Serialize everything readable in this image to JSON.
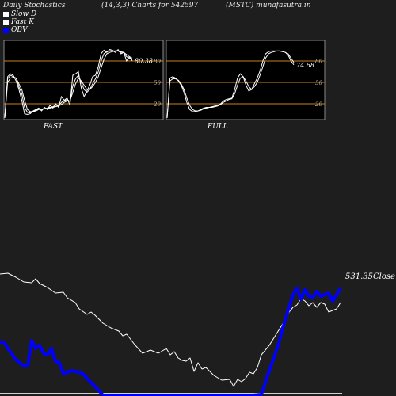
{
  "header": {
    "left": "Daily Stochastics",
    "center": "(14,3,3) Charts for 542597",
    "right": "(MSTC) munafasutra.in"
  },
  "legend": [
    {
      "label": "Slow  D",
      "color": "#ffffff"
    },
    {
      "label": "Fast K",
      "color": "#ffffff"
    },
    {
      "label": "OBV",
      "color": "#0000ff"
    }
  ],
  "colors": {
    "background": "#1e1e1e",
    "panel_background": "#000000",
    "panel_border": "#888888",
    "level_line": "#c87f1e",
    "line": "#ffffff",
    "obv": "#0000ff"
  },
  "chart_data": [
    {
      "type": "line",
      "panel": "FAST",
      "label": "FAST",
      "ylim": [
        0,
        100
      ],
      "ticks": [
        80,
        50,
        20
      ],
      "levels": [
        80,
        50,
        20
      ],
      "last_value_label": "80.38",
      "series": [
        {
          "values": [
            0,
            58,
            62,
            60,
            52,
            40,
            25,
            6,
            5,
            6,
            10,
            12,
            14,
            10,
            15,
            12,
            18,
            14,
            20,
            15,
            30,
            25,
            28,
            18,
            60,
            62,
            65,
            42,
            30,
            38,
            46,
            58,
            60,
            72,
            90,
            95,
            92,
            96,
            95,
            92,
            96,
            90,
            92,
            80,
            86,
            80.38
          ]
        },
        {
          "values": [
            0,
            55,
            60,
            58,
            56,
            44,
            34,
            15,
            8,
            7,
            9,
            11,
            13,
            12,
            13,
            14,
            15,
            16,
            18,
            17,
            22,
            24,
            26,
            23,
            45,
            55,
            60,
            50,
            40,
            36,
            40,
            48,
            55,
            65,
            80,
            90,
            93,
            94,
            94,
            94,
            94,
            92,
            92,
            86,
            84,
            82
          ]
        },
        {
          "values": [
            0,
            50,
            56,
            57,
            56,
            48,
            40,
            25,
            12,
            9,
            9,
            10,
            12,
            12,
            13,
            13,
            14,
            15,
            16,
            17,
            19,
            22,
            24,
            24,
            36,
            48,
            56,
            52,
            46,
            40,
            40,
            44,
            50,
            58,
            70,
            82,
            90,
            92,
            93,
            94,
            94,
            93,
            92,
            89,
            86,
            84
          ]
        }
      ]
    },
    {
      "type": "line",
      "panel": "FULL",
      "label": "FULL",
      "ylim": [
        0,
        100
      ],
      "ticks": [
        80,
        50,
        20
      ],
      "levels": [
        80,
        50,
        20
      ],
      "last_value_label": "74.68",
      "series": [
        {
          "values": [
            0,
            56,
            58,
            56,
            52,
            46,
            36,
            22,
            12,
            9,
            9,
            10,
            12,
            14,
            15,
            15,
            16,
            17,
            18,
            20,
            24,
            26,
            27,
            28,
            40,
            56,
            62,
            58,
            46,
            38,
            40,
            48,
            56,
            66,
            80,
            90,
            93,
            94,
            94,
            94,
            94,
            93,
            92,
            88,
            80,
            74.68
          ]
        },
        {
          "values": [
            0,
            52,
            55,
            55,
            53,
            48,
            40,
            28,
            18,
            12,
            10,
            10,
            11,
            13,
            14,
            15,
            15,
            16,
            17,
            19,
            22,
            24,
            26,
            27,
            34,
            46,
            56,
            58,
            52,
            44,
            40,
            44,
            50,
            60,
            72,
            84,
            90,
            92,
            93,
            94,
            94,
            93,
            92,
            90,
            84,
            78
          ]
        }
      ]
    },
    {
      "type": "line",
      "panel": "OBV",
      "last_value_label": "531.35Close",
      "series": [
        {
          "name": "Close",
          "color": "#ffffff",
          "values": [
            [
              0,
              54
            ],
            [
              10,
              55
            ],
            [
              20,
              50
            ],
            [
              30,
              44
            ],
            [
              40,
              43
            ],
            [
              45,
              48
            ],
            [
              50,
              42
            ],
            [
              60,
              37
            ],
            [
              70,
              30
            ],
            [
              80,
              31
            ],
            [
              85,
              24
            ],
            [
              95,
              18
            ],
            [
              100,
              10
            ],
            [
              110,
              3
            ],
            [
              115,
              6
            ],
            [
              120,
              2
            ],
            [
              130,
              -8
            ],
            [
              140,
              -14
            ],
            [
              150,
              -18
            ],
            [
              155,
              -24
            ],
            [
              160,
              -22
            ],
            [
              170,
              -35
            ],
            [
              180,
              -46
            ],
            [
              190,
              -42
            ],
            [
              200,
              -46
            ],
            [
              210,
              -40
            ],
            [
              215,
              -48
            ],
            [
              220,
              -44
            ],
            [
              225,
              -52
            ],
            [
              230,
              -55
            ],
            [
              235,
              -56
            ],
            [
              240,
              -52
            ],
            [
              245,
              -69
            ],
            [
              250,
              -58
            ],
            [
              255,
              -66
            ],
            [
              260,
              -64
            ],
            [
              270,
              -74
            ],
            [
              280,
              -80
            ],
            [
              290,
              -79
            ],
            [
              295,
              -88
            ],
            [
              300,
              -79
            ],
            [
              305,
              -82
            ],
            [
              310,
              -78
            ],
            [
              315,
              -70
            ],
            [
              320,
              -72
            ],
            [
              325,
              -64
            ],
            [
              330,
              -48
            ],
            [
              340,
              -36
            ],
            [
              350,
              -20
            ],
            [
              360,
              -4
            ],
            [
              365,
              6
            ],
            [
              370,
              12
            ],
            [
              375,
              15
            ],
            [
              380,
              23
            ],
            [
              385,
              20
            ],
            [
              390,
              14
            ],
            [
              395,
              18
            ],
            [
              400,
              12
            ],
            [
              405,
              18
            ],
            [
              410,
              16
            ],
            [
              415,
              6
            ],
            [
              420,
              8
            ],
            [
              425,
              10
            ],
            [
              430,
              18
            ]
          ]
        },
        {
          "name": "OBV",
          "color": "#0000ff",
          "values": [
            [
              0,
              -32
            ],
            [
              5,
              -32
            ],
            [
              10,
              -40
            ],
            [
              15,
              -47
            ],
            [
              20,
              -54
            ],
            [
              25,
              -58
            ],
            [
              30,
              -62
            ],
            [
              35,
              -62
            ],
            [
              40,
              -30
            ],
            [
              45,
              -40
            ],
            [
              50,
              -36
            ],
            [
              55,
              -46
            ],
            [
              60,
              -48
            ],
            [
              65,
              -40
            ],
            [
              70,
              -56
            ],
            [
              75,
              -58
            ],
            [
              80,
              -72
            ],
            [
              90,
              -68
            ],
            [
              100,
              -70
            ],
            [
              105,
              -72
            ],
            [
              110,
              -78
            ],
            [
              120,
              -88
            ],
            [
              130,
              -100
            ],
            [
              140,
              -104
            ],
            [
              150,
              -112
            ],
            [
              155,
              -112
            ],
            [
              160,
              -106
            ],
            [
              165,
              -118
            ],
            [
              170,
              -106
            ],
            [
              175,
              -112
            ],
            [
              180,
              -124
            ],
            [
              190,
              -130
            ],
            [
              200,
              -140
            ],
            [
              205,
              -138
            ],
            [
              215,
              -145
            ],
            [
              220,
              -142
            ],
            [
              230,
              -146
            ],
            [
              240,
              -150
            ],
            [
              250,
              -140
            ],
            [
              255,
              -145
            ],
            [
              260,
              -136
            ],
            [
              265,
              -112
            ],
            [
              270,
              -120
            ],
            [
              275,
              -142
            ],
            [
              280,
              -140
            ],
            [
              285,
              -150
            ],
            [
              290,
              -152
            ],
            [
              295,
              -145
            ],
            [
              300,
              -152
            ],
            [
              305,
              -112
            ],
            [
              310,
              -118
            ],
            [
              315,
              -108
            ],
            [
              320,
              -110
            ],
            [
              330,
              -98
            ],
            [
              340,
              -68
            ],
            [
              350,
              -40
            ],
            [
              360,
              -4
            ],
            [
              370,
              28
            ],
            [
              375,
              36
            ],
            [
              380,
              22
            ],
            [
              385,
              34
            ],
            [
              390,
              26
            ],
            [
              395,
              24
            ],
            [
              400,
              32
            ],
            [
              405,
              26
            ],
            [
              410,
              28
            ],
            [
              415,
              30
            ],
            [
              420,
              20
            ],
            [
              430,
              36
            ]
          ]
        }
      ]
    }
  ]
}
